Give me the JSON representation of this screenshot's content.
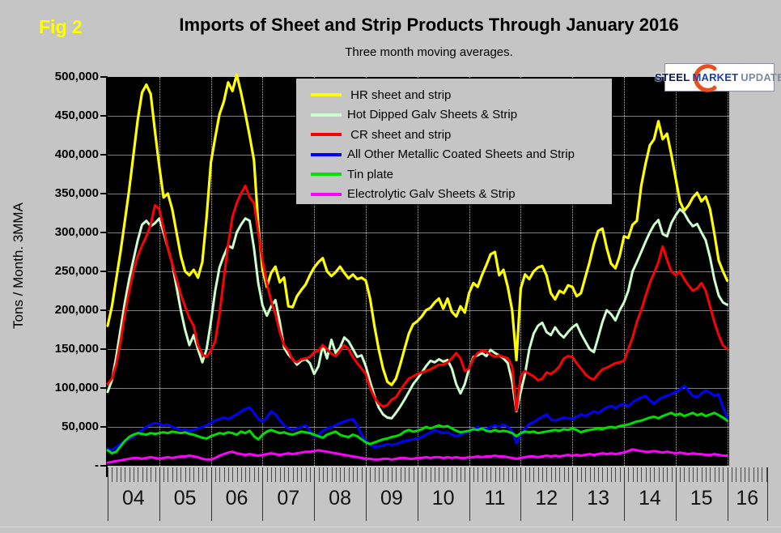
{
  "figure_label": "Fig 2",
  "title": "Imports of Sheet and Strip Products Through January 2016",
  "subtitle": "Three month moving averages.",
  "logo": {
    "word1": "STEEL",
    "word2": "MARKET",
    "word3": "UPDATE",
    "swoosh_color": "#e8501e"
  },
  "y_axis": {
    "title": "Tons / Month. 3MMA",
    "tick_labels": [
      "500,000",
      "450,000",
      "400,000",
      "350,000",
      "300,000",
      "250,000",
      "200,000",
      "150,000",
      "100,000",
      "50,000",
      "-"
    ]
  },
  "x_axis": {
    "year_labels": [
      "04",
      "05",
      "06",
      "07",
      "08",
      "09",
      "10",
      "11",
      "12",
      "13",
      "14",
      "15",
      "16"
    ]
  },
  "legend": [
    {
      "label": " HR sheet and strip",
      "color": "#ffff00"
    },
    {
      "label": "Hot Dipped Galv Sheets & Strip",
      "color": "#ccffcc"
    },
    {
      "label": " CR sheet and strip",
      "color": "#ff0000"
    },
    {
      "label": "All Other Metallic Coated Sheets and Strip",
      "color": "#0000ff"
    },
    {
      "label": "Tin plate",
      "color": "#00e000"
    },
    {
      "label": "Electrolytic Galv Sheets & Strip",
      "color": "#ff00ff"
    }
  ],
  "chart_data": {
    "type": "line",
    "title": "Imports of Sheet and Strip Products Through January 2016",
    "subtitle": "Three month moving averages.",
    "ylabel": "Tons / Month. 3MMA",
    "ylim": [
      0,
      500000
    ],
    "y_tick_step": 50000,
    "x_start": "2004-01",
    "x_end": "2016-01",
    "frequency": "monthly",
    "values_unit": "thousand tons per month (3MMA)",
    "grid": "horizontal solid, vertical dotted at year boundaries",
    "legend_position": "top-center overlay",
    "plot_background": "#000000",
    "series": [
      {
        "name": "HR sheet and strip",
        "color": "#ffff00",
        "values": [
          180,
          205,
          240,
          275,
          315,
          355,
          400,
          445,
          480,
          490,
          478,
          430,
          385,
          345,
          350,
          330,
          300,
          270,
          250,
          245,
          252,
          242,
          262,
          320,
          390,
          422,
          452,
          468,
          493,
          482,
          503,
          480,
          453,
          424,
          393,
          310,
          252,
          230,
          248,
          256,
          236,
          242,
          205,
          204,
          218,
          226,
          233,
          245,
          255,
          262,
          267,
          250,
          244,
          249,
          256,
          248,
          241,
          246,
          240,
          242,
          238,
          215,
          180,
          150,
          125,
          108,
          104,
          112,
          130,
          150,
          170,
          182,
          186,
          192,
          200,
          203,
          210,
          215,
          202,
          215,
          198,
          192,
          205,
          197,
          222,
          235,
          230,
          245,
          258,
          272,
          275,
          245,
          252,
          230,
          200,
          136,
          228,
          246,
          240,
          250,
          255,
          257,
          245,
          222,
          214,
          225,
          222,
          232,
          230,
          218,
          222,
          242,
          262,
          285,
          302,
          305,
          280,
          260,
          254,
          270,
          295,
          293,
          310,
          315,
          360,
          388,
          412,
          420,
          443,
          420,
          427,
          400,
          370,
          340,
          328,
          335,
          345,
          351,
          340,
          346,
          330,
          299,
          264,
          250,
          238
        ]
      },
      {
        "name": "Hot Dipped Galv Sheets & Strip",
        "color": "#ccffcc",
        "values": [
          95,
          110,
          140,
          175,
          210,
          240,
          265,
          290,
          310,
          315,
          308,
          312,
          318,
          300,
          280,
          260,
          230,
          200,
          175,
          155,
          168,
          150,
          133,
          150,
          185,
          225,
          255,
          270,
          283,
          280,
          300,
          310,
          318,
          315,
          280,
          235,
          206,
          193,
          205,
          213,
          185,
          152,
          143,
          137,
          130,
          135,
          137,
          132,
          118,
          128,
          155,
          138,
          162,
          145,
          152,
          165,
          160,
          150,
          140,
          142,
          128,
          108,
          90,
          75,
          66,
          62,
          61,
          68,
          76,
          85,
          95,
          105,
          112,
          120,
          128,
          135,
          133,
          137,
          134,
          136,
          125,
          105,
          93,
          105,
          125,
          140,
          142,
          145,
          141,
          149,
          145,
          142,
          138,
          132,
          108,
          70,
          95,
          118,
          150,
          170,
          180,
          184,
          172,
          168,
          178,
          170,
          165,
          172,
          178,
          182,
          170,
          160,
          150,
          146,
          165,
          185,
          200,
          195,
          187,
          200,
          210,
          225,
          250,
          262,
          275,
          288,
          300,
          310,
          316,
          298,
          295,
          312,
          322,
          330,
          325,
          315,
          308,
          311,
          300,
          290,
          268,
          240,
          219,
          210,
          207
        ]
      },
      {
        "name": "CR sheet and strip",
        "color": "#ff0000",
        "values": [
          105,
          112,
          130,
          160,
          195,
          225,
          250,
          270,
          283,
          295,
          310,
          335,
          330,
          305,
          280,
          260,
          240,
          220,
          205,
          190,
          180,
          155,
          143,
          140,
          148,
          160,
          195,
          240,
          285,
          320,
          338,
          350,
          360,
          345,
          338,
          300,
          264,
          235,
          212,
          195,
          172,
          155,
          148,
          136,
          133,
          137,
          138,
          140,
          146,
          148,
          155,
          150,
          144,
          141,
          148,
          155,
          150,
          140,
          132,
          125,
          118,
          100,
          88,
          80,
          76,
          78,
          85,
          88,
          97,
          105,
          112,
          115,
          118,
          120,
          122,
          124,
          127,
          130,
          130,
          133,
          138,
          145,
          138,
          122,
          125,
          138,
          145,
          148,
          147,
          143,
          140,
          142,
          140,
          138,
          128,
          71,
          115,
          122,
          118,
          115,
          110,
          112,
          120,
          118,
          122,
          128,
          138,
          141,
          140,
          132,
          125,
          118,
          113,
          111,
          118,
          124,
          126,
          129,
          132,
          133,
          135,
          150,
          165,
          185,
          200,
          218,
          235,
          248,
          262,
          282,
          265,
          250,
          245,
          250,
          240,
          232,
          225,
          228,
          235,
          225,
          205,
          185,
          168,
          155,
          150
        ]
      },
      {
        "name": "All Other Metallic Coated Sheets and Strip",
        "color": "#0000ff",
        "values": [
          22,
          20,
          24,
          28,
          32,
          34,
          38,
          42,
          46,
          50,
          53,
          55,
          54,
          52,
          53,
          50,
          48,
          46,
          47,
          45,
          46,
          48,
          50,
          52,
          55,
          58,
          60,
          62,
          60,
          63,
          66,
          70,
          73,
          75,
          68,
          60,
          57,
          62,
          70,
          66,
          58,
          52,
          48,
          46,
          48,
          50,
          52,
          45,
          37,
          40,
          45,
          48,
          50,
          52,
          55,
          57,
          59,
          60,
          52,
          40,
          32,
          27,
          24,
          25,
          26,
          28,
          27,
          28,
          30,
          32,
          33,
          34,
          35,
          37,
          40,
          43,
          46,
          44,
          42,
          43,
          40,
          38,
          40,
          42,
          44,
          47,
          50,
          48,
          47,
          50,
          52,
          50,
          53,
          50,
          45,
          29,
          40,
          48,
          54,
          56,
          60,
          63,
          66,
          60,
          58,
          60,
          62,
          61,
          60,
          63,
          66,
          64,
          67,
          70,
          68,
          72,
          75,
          77,
          74,
          78,
          80,
          76,
          82,
          85,
          88,
          90,
          84,
          80,
          85,
          88,
          90,
          92,
          95,
          98,
          103,
          96,
          90,
          88,
          93,
          97,
          94,
          90,
          92,
          75,
          62
        ]
      },
      {
        "name": "Tin plate",
        "color": "#00e000",
        "values": [
          20,
          16,
          18,
          25,
          32,
          37,
          40,
          42,
          41,
          40,
          42,
          41,
          42,
          43,
          42,
          44,
          43,
          42,
          43,
          41,
          40,
          38,
          36,
          35,
          38,
          40,
          42,
          41,
          43,
          42,
          40,
          44,
          42,
          45,
          38,
          34,
          40,
          44,
          46,
          44,
          42,
          43,
          41,
          40,
          42,
          44,
          43,
          42,
          40,
          38,
          36,
          40,
          42,
          44,
          40,
          38,
          37,
          40,
          38,
          34,
          30,
          28,
          30,
          32,
          34,
          35,
          37,
          38,
          40,
          44,
          46,
          44,
          45,
          47,
          50,
          48,
          50,
          52,
          50,
          51,
          48,
          45,
          43,
          44,
          45,
          47,
          46,
          48,
          45,
          44,
          46,
          44,
          45,
          44,
          42,
          38,
          42,
          44,
          43,
          44,
          42,
          43,
          44,
          45,
          46,
          45,
          47,
          46,
          48,
          46,
          43,
          45,
          46,
          47,
          48,
          47,
          49,
          50,
          49,
          51,
          52,
          53,
          55,
          57,
          58,
          60,
          62,
          63,
          61,
          64,
          66,
          68,
          65,
          67,
          64,
          66,
          68,
          65,
          67,
          64,
          66,
          68,
          65,
          62,
          58
        ]
      },
      {
        "name": "Electrolytic Galv Sheets & Strip",
        "color": "#ff00ff",
        "values": [
          4,
          5,
          6,
          7,
          8,
          9,
          10,
          10,
          9,
          10,
          11,
          10,
          9,
          10,
          11,
          10,
          11,
          12,
          12,
          13,
          12,
          11,
          9,
          8,
          8,
          10,
          13,
          15,
          17,
          18,
          16,
          15,
          14,
          15,
          14,
          13,
          14,
          15,
          16,
          15,
          14,
          15,
          16,
          15,
          16,
          17,
          18,
          18,
          19,
          20,
          19,
          18,
          17,
          16,
          15,
          14,
          13,
          12,
          11,
          10,
          9,
          9,
          8,
          8,
          9,
          9,
          8,
          9,
          10,
          10,
          9,
          9,
          10,
          10,
          11,
          10,
          11,
          11,
          10,
          11,
          10,
          11,
          10,
          10,
          11,
          11,
          12,
          11,
          12,
          12,
          13,
          12,
          12,
          11,
          10,
          9,
          10,
          11,
          12,
          12,
          11,
          12,
          13,
          12,
          13,
          12,
          13,
          14,
          13,
          14,
          13,
          14,
          15,
          14,
          15,
          16,
          15,
          16,
          15,
          16,
          17,
          19,
          21,
          20,
          19,
          18,
          18,
          19,
          18,
          17,
          18,
          17,
          16,
          17,
          16,
          15,
          16,
          15,
          15,
          14,
          14,
          15,
          14,
          13,
          13
        ]
      }
    ]
  }
}
